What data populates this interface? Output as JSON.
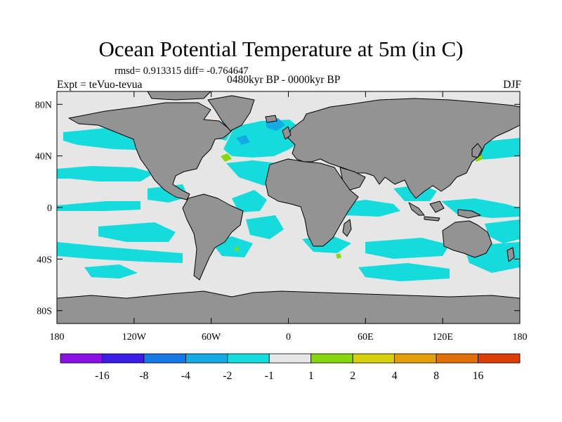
{
  "title": "Ocean Potential Temperature at 5m (in C)",
  "stats_text": "rmsd= 0.913315 diff= -0.764647",
  "period_text": "0480kyr BP - 0000kyr BP",
  "experiment_text": "Expt = teVuo-tevua",
  "season_text": "DJF",
  "map": {
    "projection": "cylindrical-equidistant",
    "lon_range": [
      -180,
      180
    ],
    "lat_range": [
      -90,
      90
    ],
    "y_ticks": [
      {
        "lat": 80,
        "label": "80N"
      },
      {
        "lat": 40,
        "label": "40N"
      },
      {
        "lat": 0,
        "label": "0"
      },
      {
        "lat": -40,
        "label": "40S"
      },
      {
        "lat": -80,
        "label": "80S"
      }
    ],
    "x_ticks": [
      {
        "lon": -180,
        "label": "180"
      },
      {
        "lon": -120,
        "label": "120W"
      },
      {
        "lon": -60,
        "label": "60W"
      },
      {
        "lon": 0,
        "label": "0"
      },
      {
        "lon": 60,
        "label": "60E"
      },
      {
        "lon": 120,
        "label": "120E"
      },
      {
        "lon": 180,
        "label": "180"
      }
    ],
    "colors": {
      "land": "#939393",
      "ocean_neutral": "#e6e6e6",
      "coast": "#000000"
    }
  },
  "colorbar": {
    "bins": [
      {
        "color": "#8a12e6"
      },
      {
        "color": "#3a1ee6"
      },
      {
        "color": "#1478e6"
      },
      {
        "color": "#14aae6"
      },
      {
        "color": "#14dcdc"
      },
      {
        "color": "#e6e6e6"
      },
      {
        "color": "#86d80e"
      },
      {
        "color": "#d6d00a"
      },
      {
        "color": "#e4a00a"
      },
      {
        "color": "#e27006"
      },
      {
        "color": "#dc3c06"
      }
    ],
    "labels": [
      "-16",
      "-8",
      "-4",
      "-2",
      "-1",
      "1",
      "2",
      "4",
      "8",
      "16"
    ]
  }
}
